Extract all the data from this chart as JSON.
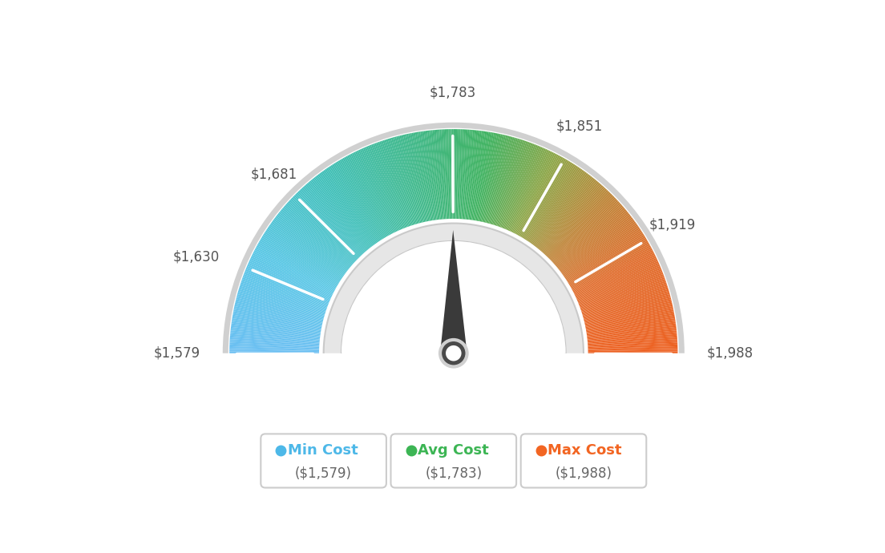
{
  "min_val": 1579,
  "max_val": 1988,
  "avg_val": 1783,
  "tick_labels": [
    "$1,579",
    "$1,630",
    "$1,681",
    "$1,783",
    "$1,851",
    "$1,919",
    "$1,988"
  ],
  "tick_values": [
    1579,
    1630,
    1681,
    1783,
    1851,
    1919,
    1988
  ],
  "legend_items": [
    {
      "label": "Min Cost",
      "value": "($1,579)",
      "color": "#4db8e8"
    },
    {
      "label": "Avg Cost",
      "value": "($1,783)",
      "color": "#3cb554"
    },
    {
      "label": "Max Cost",
      "value": "($1,988)",
      "color": "#f26522"
    }
  ],
  "bg_color": "#ffffff",
  "needle_value": 1783,
  "color_stops": [
    [
      0.0,
      [
        0.42,
        0.75,
        0.95
      ]
    ],
    [
      0.15,
      [
        0.35,
        0.78,
        0.9
      ]
    ],
    [
      0.3,
      [
        0.25,
        0.75,
        0.72
      ]
    ],
    [
      0.45,
      [
        0.25,
        0.72,
        0.52
      ]
    ],
    [
      0.55,
      [
        0.25,
        0.7,
        0.38
      ]
    ],
    [
      0.65,
      [
        0.55,
        0.65,
        0.28
      ]
    ],
    [
      0.75,
      [
        0.75,
        0.52,
        0.22
      ]
    ],
    [
      0.85,
      [
        0.88,
        0.43,
        0.18
      ]
    ],
    [
      1.0,
      [
        0.93,
        0.38,
        0.13
      ]
    ]
  ]
}
